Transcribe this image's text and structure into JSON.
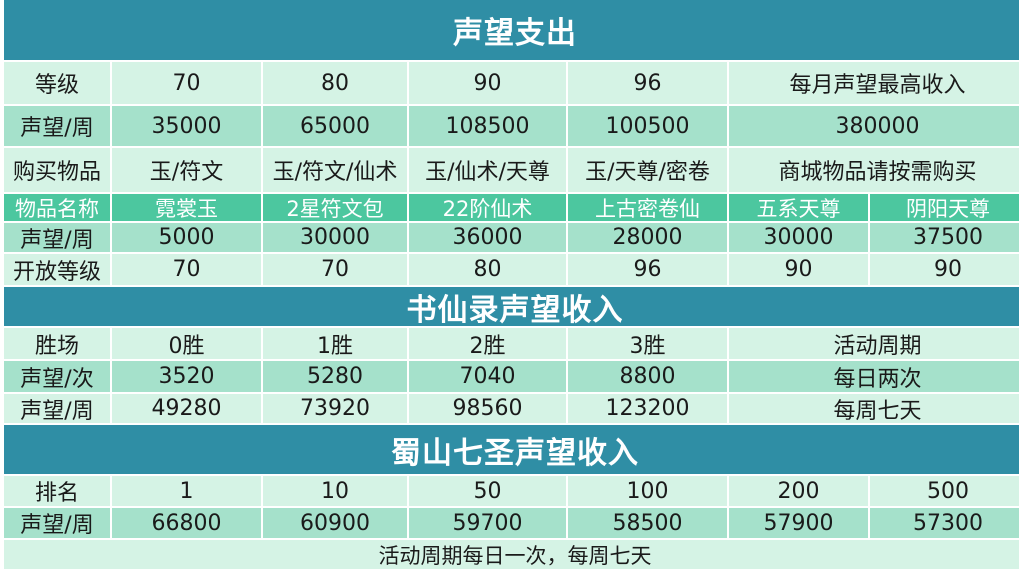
{
  "section1": {
    "title": "声望支出",
    "level_row": {
      "label": "等级",
      "values": [
        "70",
        "80",
        "90",
        "96"
      ],
      "extra": "每月声望最高收入"
    },
    "weekly_row": {
      "label": "声望/周",
      "values": [
        "35000",
        "65000",
        "108500",
        "100500"
      ],
      "extra": "380000"
    },
    "buy_row": {
      "label": "购买物品",
      "values": [
        "玉/符文",
        "玉/符文/仙术",
        "玉/仙术/天尊",
        "玉/天尊/密卷"
      ],
      "extra": "商城物品请按需购买"
    },
    "item_name_row": {
      "label": "物品名称",
      "values": [
        "霓裳玉",
        "2星符文包",
        "22阶仙术",
        "上古密卷仙",
        "五系天尊",
        "阴阳天尊"
      ]
    },
    "item_weekly_row": {
      "label": "声望/周",
      "values": [
        "5000",
        "30000",
        "36000",
        "28000",
        "30000",
        "37500"
      ]
    },
    "open_level_row": {
      "label": "开放等级",
      "values": [
        "70",
        "70",
        "80",
        "96",
        "90",
        "90"
      ]
    }
  },
  "section2": {
    "title": "书仙录声望收入",
    "wins_row": {
      "label": "胜场",
      "values": [
        "0胜",
        "1胜",
        "2胜",
        "3胜"
      ],
      "extra": "活动周期"
    },
    "per_time_row": {
      "label": "声望/次",
      "values": [
        "3520",
        "5280",
        "7040",
        "8800"
      ],
      "extra": "每日两次"
    },
    "weekly_row": {
      "label": "声望/周",
      "values": [
        "49280",
        "73920",
        "98560",
        "123200"
      ],
      "extra": "每周七天"
    }
  },
  "section3": {
    "title": "蜀山七圣声望收入",
    "rank_row": {
      "label": "排名",
      "values": [
        "1",
        "10",
        "50",
        "100",
        "200",
        "500"
      ]
    },
    "weekly_row": {
      "label": "声望/周",
      "values": [
        "66800",
        "60900",
        "59700",
        "58500",
        "57900",
        "57300"
      ]
    },
    "footer": "活动周期每日一次，每周七天"
  }
}
